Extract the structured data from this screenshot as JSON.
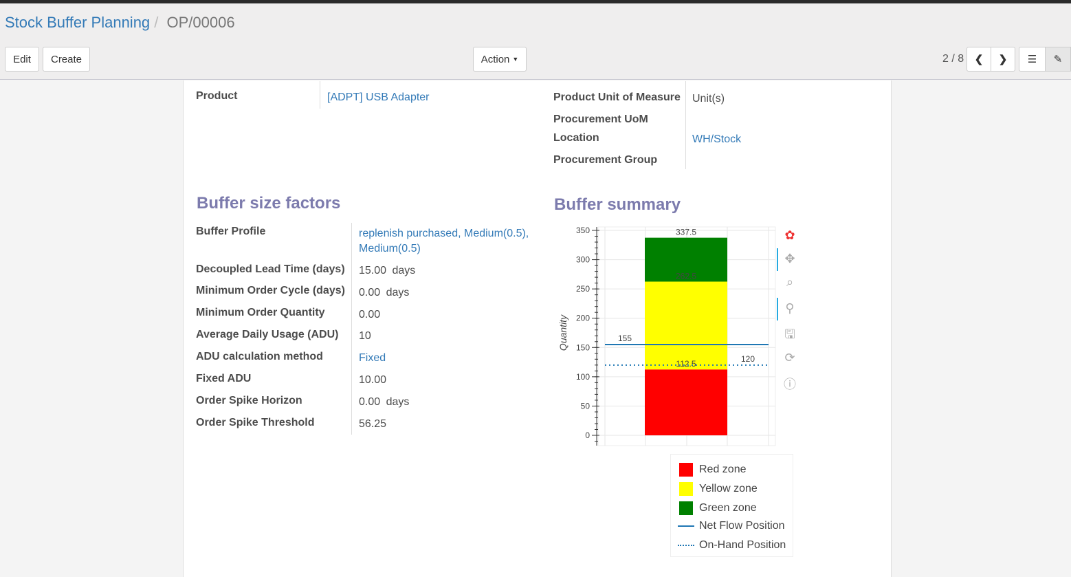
{
  "breadcrumb": {
    "parent": "Stock Buffer Planning",
    "current": "OP/00006"
  },
  "toolbar": {
    "edit": "Edit",
    "create": "Create",
    "action": "Action",
    "pager": "2 / 8"
  },
  "fields_top_left": [
    {
      "label": "Product",
      "value": "[ADPT] USB Adapter"
    }
  ],
  "fields_top_right": [
    {
      "label": "Product Unit of Measure",
      "value": "Unit(s)"
    },
    {
      "label": "Procurement UoM",
      "value": ""
    },
    {
      "label": "Location",
      "value": "WH/Stock"
    },
    {
      "label": "Procurement Group",
      "value": ""
    }
  ],
  "buffer_factors": {
    "title": "Buffer size factors",
    "rows": [
      {
        "label": "Buffer Profile",
        "value": "replenish purchased, Medium(0.5),",
        "value2": "Medium(0.5)",
        "unit": ""
      },
      {
        "label": "Decoupled Lead Time (days)",
        "value": "15.00",
        "unit": "days"
      },
      {
        "label": "Minimum Order Cycle (days)",
        "value": "0.00",
        "unit": "days"
      },
      {
        "label": "Minimum Order Quantity",
        "value": "0.00",
        "unit": ""
      },
      {
        "label": "Average Daily Usage (ADU)",
        "value": "10",
        "unit": ""
      },
      {
        "label": "ADU calculation method",
        "value": "Fixed",
        "unit": ""
      },
      {
        "label": "Fixed ADU",
        "value": "10.00",
        "unit": ""
      },
      {
        "label": "Order Spike Horizon",
        "value": "0.00",
        "unit": "days"
      },
      {
        "label": "Order Spike Threshold",
        "value": "56.25",
        "unit": ""
      }
    ]
  },
  "summary": {
    "title": "Buffer summary"
  },
  "chart_data": {
    "type": "bar",
    "ylabel": "Quantity",
    "ylim": [
      0,
      350
    ],
    "yticks": [
      0,
      50,
      100,
      150,
      200,
      250,
      300,
      350
    ],
    "grid": true,
    "stacked_zones": [
      {
        "name": "Red zone",
        "from": 0,
        "to": 112.5,
        "color": "#ff0000",
        "label": "112.5"
      },
      {
        "name": "Yellow zone",
        "from": 112.5,
        "to": 262.5,
        "color": "#ffff00",
        "label": "262.5"
      },
      {
        "name": "Green zone",
        "from": 262.5,
        "to": 337.5,
        "color": "#008000",
        "label": "337.5"
      }
    ],
    "lines": [
      {
        "name": "Net Flow Position",
        "value": 155,
        "label": "155",
        "style": "solid",
        "color": "#1f77b4"
      },
      {
        "name": "On-Hand Position",
        "value": 120,
        "label": "120",
        "style": "dotted",
        "color": "#1f77b4"
      }
    ],
    "legend_position": "bottom-right"
  }
}
